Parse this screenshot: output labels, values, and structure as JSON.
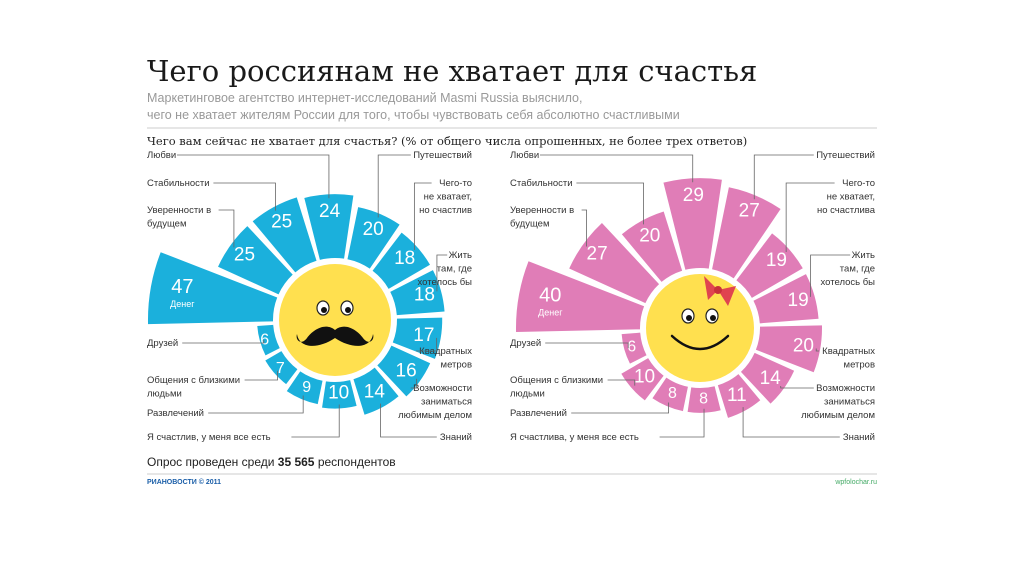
{
  "title": "Чего россиянам не хватает для счастья",
  "subtitle_line1": "Маркетинговое агентство интернет-исследований Masmi Russia выяснило,",
  "subtitle_line2": "чего не хватает жителям России для того, чтобы чувствовать себя абсолютно счастливыми",
  "question": "Чего вам сейчас не хватает для счастья? (% от общего числа опрошенных, не более трех ответов)",
  "footer": {
    "prefix": "Опрос проведен среди ",
    "count": "35 565",
    "suffix": " респондентов"
  },
  "source": "РИАНОВОСТИ © 2011",
  "watermark": "wpfolochar.ru",
  "colors": {
    "men": "#1bb0dc",
    "women": "#e07db7",
    "face": "#ffe04f",
    "bow": "#e0444f"
  },
  "chart_data": [
    {
      "type": "radial-bar",
      "group": "men",
      "unit": "%",
      "categories": [
        "Денег",
        "Уверенности в будущем",
        "Стабильности",
        "Любви",
        "Путешествий",
        "Чего-то не хватает, но счастлив",
        "Жить там, где хотелось бы",
        "Квадратных метров",
        "Возможности заниматься любимым делом",
        "Знаний",
        "Я счастлив, у меня все есть",
        "Развлечений",
        "Общения с близкими людьми",
        "Друзей"
      ],
      "values": [
        47,
        25,
        25,
        24,
        20,
        18,
        18,
        17,
        16,
        14,
        10,
        9,
        7,
        6
      ]
    },
    {
      "type": "radial-bar",
      "group": "women",
      "unit": "%",
      "categories": [
        "Денег",
        "Уверенности в будущем",
        "Стабильности",
        "Любви",
        "Путешествий",
        "Чего-то не хватает, но счастлива",
        "Жить там, где хотелось бы",
        "Квадратных метров",
        "Возможности заниматься любимым делом",
        "Знаний",
        "Я счастлива, у меня все есть",
        "Развлечений",
        "Общения с близкими людьми",
        "Друзей"
      ],
      "values": [
        40,
        27,
        20,
        29,
        27,
        19,
        19,
        20,
        14,
        11,
        8,
        8,
        10,
        6
      ]
    }
  ]
}
